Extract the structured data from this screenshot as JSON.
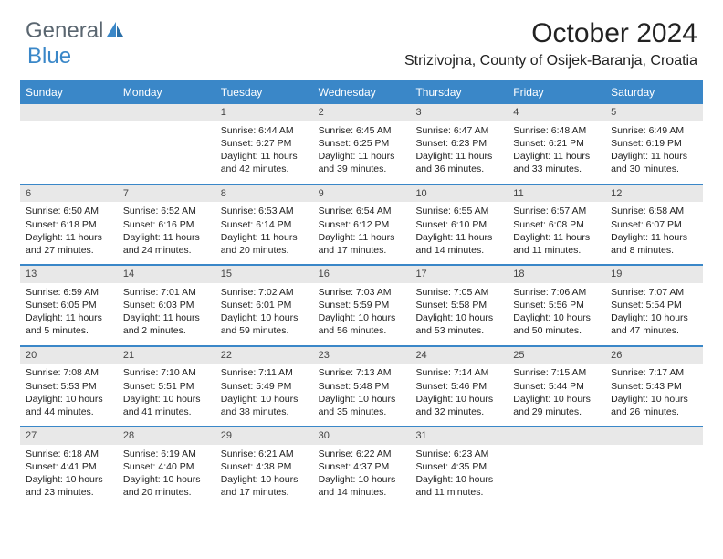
{
  "brand": {
    "part1": "General",
    "part2": "Blue"
  },
  "title": "October 2024",
  "location": "Strizivojna, County of Osijek-Baranja, Croatia",
  "colors": {
    "accent": "#3a87c8",
    "header_text": "#ffffff",
    "daynum_bg": "#e8e8e8",
    "text": "#222222",
    "logo_gray": "#5a6670"
  },
  "weekdays": [
    "Sunday",
    "Monday",
    "Tuesday",
    "Wednesday",
    "Thursday",
    "Friday",
    "Saturday"
  ],
  "weeks": [
    [
      null,
      null,
      {
        "n": "1",
        "sr": "6:44 AM",
        "ss": "6:27 PM",
        "dl": "11 hours and 42 minutes."
      },
      {
        "n": "2",
        "sr": "6:45 AM",
        "ss": "6:25 PM",
        "dl": "11 hours and 39 minutes."
      },
      {
        "n": "3",
        "sr": "6:47 AM",
        "ss": "6:23 PM",
        "dl": "11 hours and 36 minutes."
      },
      {
        "n": "4",
        "sr": "6:48 AM",
        "ss": "6:21 PM",
        "dl": "11 hours and 33 minutes."
      },
      {
        "n": "5",
        "sr": "6:49 AM",
        "ss": "6:19 PM",
        "dl": "11 hours and 30 minutes."
      }
    ],
    [
      {
        "n": "6",
        "sr": "6:50 AM",
        "ss": "6:18 PM",
        "dl": "11 hours and 27 minutes."
      },
      {
        "n": "7",
        "sr": "6:52 AM",
        "ss": "6:16 PM",
        "dl": "11 hours and 24 minutes."
      },
      {
        "n": "8",
        "sr": "6:53 AM",
        "ss": "6:14 PM",
        "dl": "11 hours and 20 minutes."
      },
      {
        "n": "9",
        "sr": "6:54 AM",
        "ss": "6:12 PM",
        "dl": "11 hours and 17 minutes."
      },
      {
        "n": "10",
        "sr": "6:55 AM",
        "ss": "6:10 PM",
        "dl": "11 hours and 14 minutes."
      },
      {
        "n": "11",
        "sr": "6:57 AM",
        "ss": "6:08 PM",
        "dl": "11 hours and 11 minutes."
      },
      {
        "n": "12",
        "sr": "6:58 AM",
        "ss": "6:07 PM",
        "dl": "11 hours and 8 minutes."
      }
    ],
    [
      {
        "n": "13",
        "sr": "6:59 AM",
        "ss": "6:05 PM",
        "dl": "11 hours and 5 minutes."
      },
      {
        "n": "14",
        "sr": "7:01 AM",
        "ss": "6:03 PM",
        "dl": "11 hours and 2 minutes."
      },
      {
        "n": "15",
        "sr": "7:02 AM",
        "ss": "6:01 PM",
        "dl": "10 hours and 59 minutes."
      },
      {
        "n": "16",
        "sr": "7:03 AM",
        "ss": "5:59 PM",
        "dl": "10 hours and 56 minutes."
      },
      {
        "n": "17",
        "sr": "7:05 AM",
        "ss": "5:58 PM",
        "dl": "10 hours and 53 minutes."
      },
      {
        "n": "18",
        "sr": "7:06 AM",
        "ss": "5:56 PM",
        "dl": "10 hours and 50 minutes."
      },
      {
        "n": "19",
        "sr": "7:07 AM",
        "ss": "5:54 PM",
        "dl": "10 hours and 47 minutes."
      }
    ],
    [
      {
        "n": "20",
        "sr": "7:08 AM",
        "ss": "5:53 PM",
        "dl": "10 hours and 44 minutes."
      },
      {
        "n": "21",
        "sr": "7:10 AM",
        "ss": "5:51 PM",
        "dl": "10 hours and 41 minutes."
      },
      {
        "n": "22",
        "sr": "7:11 AM",
        "ss": "5:49 PM",
        "dl": "10 hours and 38 minutes."
      },
      {
        "n": "23",
        "sr": "7:13 AM",
        "ss": "5:48 PM",
        "dl": "10 hours and 35 minutes."
      },
      {
        "n": "24",
        "sr": "7:14 AM",
        "ss": "5:46 PM",
        "dl": "10 hours and 32 minutes."
      },
      {
        "n": "25",
        "sr": "7:15 AM",
        "ss": "5:44 PM",
        "dl": "10 hours and 29 minutes."
      },
      {
        "n": "26",
        "sr": "7:17 AM",
        "ss": "5:43 PM",
        "dl": "10 hours and 26 minutes."
      }
    ],
    [
      {
        "n": "27",
        "sr": "6:18 AM",
        "ss": "4:41 PM",
        "dl": "10 hours and 23 minutes."
      },
      {
        "n": "28",
        "sr": "6:19 AM",
        "ss": "4:40 PM",
        "dl": "10 hours and 20 minutes."
      },
      {
        "n": "29",
        "sr": "6:21 AM",
        "ss": "4:38 PM",
        "dl": "10 hours and 17 minutes."
      },
      {
        "n": "30",
        "sr": "6:22 AM",
        "ss": "4:37 PM",
        "dl": "10 hours and 14 minutes."
      },
      {
        "n": "31",
        "sr": "6:23 AM",
        "ss": "4:35 PM",
        "dl": "10 hours and 11 minutes."
      },
      null,
      null
    ]
  ],
  "labels": {
    "sunrise": "Sunrise:",
    "sunset": "Sunset:",
    "daylight": "Daylight:"
  }
}
